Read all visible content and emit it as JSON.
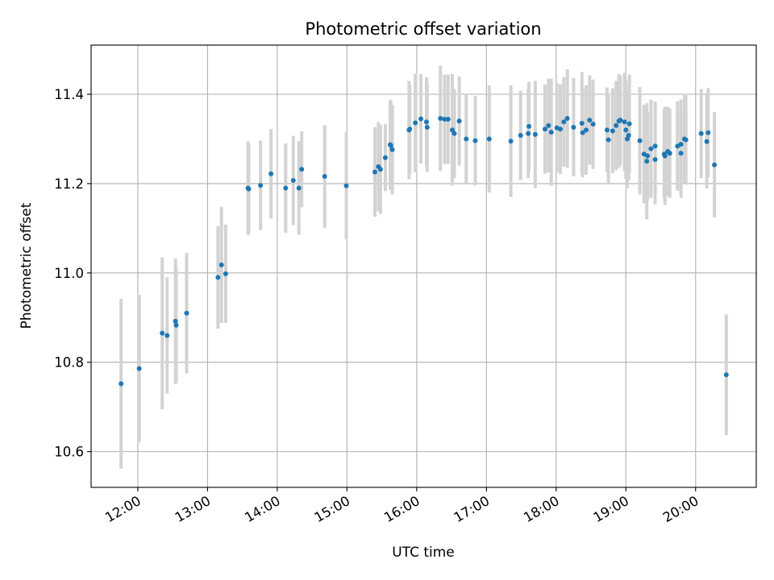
{
  "chart_data": {
    "type": "scatter",
    "title": "Photometric offset variation",
    "xlabel": "UTC time",
    "ylabel": "Photometric offset",
    "xlim_hours": [
      11.33,
      20.87
    ],
    "ylim": [
      10.52,
      11.51
    ],
    "grid": true,
    "x_ticks": [
      {
        "value": 12,
        "label": "12:00"
      },
      {
        "value": 13,
        "label": "13:00"
      },
      {
        "value": 14,
        "label": "14:00"
      },
      {
        "value": 15,
        "label": "15:00"
      },
      {
        "value": 16,
        "label": "16:00"
      },
      {
        "value": 17,
        "label": "17:00"
      },
      {
        "value": 18,
        "label": "18:00"
      },
      {
        "value": 19,
        "label": "19:00"
      },
      {
        "value": 20,
        "label": "20:00"
      }
    ],
    "y_ticks": [
      {
        "value": 10.6,
        "label": "10.6"
      },
      {
        "value": 10.8,
        "label": "10.8"
      },
      {
        "value": 11.0,
        "label": "11.0"
      },
      {
        "value": 11.2,
        "label": "11.2"
      },
      {
        "value": 11.4,
        "label": "11.4"
      }
    ],
    "colors": {
      "points": "#1f77b4",
      "errorbars": "#d3d3d3",
      "grid": "#b0b0b0"
    },
    "points": [
      [
        11.76,
        10.752,
        0.19
      ],
      [
        12.02,
        10.786,
        0.165
      ],
      [
        12.35,
        10.865,
        0.17
      ],
      [
        12.42,
        10.86,
        0.13
      ],
      [
        12.54,
        10.892,
        0.14
      ],
      [
        12.55,
        10.883,
        0.13
      ],
      [
        12.7,
        10.91,
        0.135
      ],
      [
        13.15,
        10.99,
        0.115
      ],
      [
        13.2,
        11.018,
        0.13
      ],
      [
        13.26,
        10.998,
        0.11
      ],
      [
        13.58,
        11.19,
        0.105
      ],
      [
        13.59,
        11.188,
        0.1
      ],
      [
        13.76,
        11.196,
        0.1
      ],
      [
        13.91,
        11.222,
        0.1
      ],
      [
        14.12,
        11.19,
        0.1
      ],
      [
        14.23,
        11.207,
        0.1
      ],
      [
        14.31,
        11.19,
        0.105
      ],
      [
        14.35,
        11.232,
        0.085
      ],
      [
        14.68,
        11.216,
        0.115
      ],
      [
        14.99,
        11.195,
        0.12
      ],
      [
        15.4,
        11.226,
        0.1
      ],
      [
        15.45,
        11.238,
        0.1
      ],
      [
        15.48,
        11.232,
        0.1
      ],
      [
        15.55,
        11.258,
        0.075
      ],
      [
        15.62,
        11.287,
        0.1
      ],
      [
        15.63,
        11.285,
        0.1
      ],
      [
        15.65,
        11.276,
        0.1
      ],
      [
        15.89,
        11.32,
        0.11
      ],
      [
        15.9,
        11.322,
        0.1
      ],
      [
        15.98,
        11.336,
        0.11
      ],
      [
        16.06,
        11.345,
        0.1
      ],
      [
        16.14,
        11.338,
        0.1
      ],
      [
        16.15,
        11.326,
        0.1
      ],
      [
        16.34,
        11.346,
        0.118
      ],
      [
        16.4,
        11.344,
        0.1
      ],
      [
        16.45,
        11.344,
        0.1
      ],
      [
        16.51,
        11.32,
        0.125
      ],
      [
        16.54,
        11.312,
        0.1
      ],
      [
        16.61,
        11.34,
        0.1
      ],
      [
        16.71,
        11.3,
        0.1
      ],
      [
        16.84,
        11.296,
        0.1
      ],
      [
        17.04,
        11.3,
        0.12
      ],
      [
        17.35,
        11.295,
        0.125
      ],
      [
        17.49,
        11.308,
        0.1
      ],
      [
        17.6,
        11.312,
        0.1
      ],
      [
        17.61,
        11.328,
        0.1
      ],
      [
        17.7,
        11.31,
        0.12
      ],
      [
        17.84,
        11.322,
        0.1
      ],
      [
        17.89,
        11.33,
        0.105
      ],
      [
        17.93,
        11.315,
        0.12
      ],
      [
        18.01,
        11.325,
        0.1
      ],
      [
        18.06,
        11.322,
        0.1
      ],
      [
        18.11,
        11.338,
        0.1
      ],
      [
        18.16,
        11.346,
        0.11
      ],
      [
        18.25,
        11.326,
        0.11
      ],
      [
        18.37,
        11.335,
        0.115
      ],
      [
        18.38,
        11.314,
        0.1
      ],
      [
        18.43,
        11.32,
        0.1
      ],
      [
        18.48,
        11.342,
        0.1
      ],
      [
        18.53,
        11.333,
        0.1
      ],
      [
        18.73,
        11.32,
        0.095
      ],
      [
        18.75,
        11.298,
        0.1
      ],
      [
        18.81,
        11.318,
        0.095
      ],
      [
        18.86,
        11.33,
        0.1
      ],
      [
        18.9,
        11.34,
        0.105
      ],
      [
        18.92,
        11.342,
        0.1
      ],
      [
        18.98,
        11.338,
        0.11
      ],
      [
        19.0,
        11.32,
        0.11
      ],
      [
        19.02,
        11.3,
        0.11
      ],
      [
        19.04,
        11.308,
        0.1
      ],
      [
        19.05,
        11.334,
        0.11
      ],
      [
        19.2,
        11.296,
        0.12
      ],
      [
        19.26,
        11.266,
        0.11
      ],
      [
        19.3,
        11.25,
        0.13
      ],
      [
        19.31,
        11.262,
        0.1
      ],
      [
        19.36,
        11.278,
        0.11
      ],
      [
        19.42,
        11.284,
        0.1
      ],
      [
        19.42,
        11.254,
        0.1
      ],
      [
        19.55,
        11.266,
        0.1
      ],
      [
        19.56,
        11.262,
        0.11
      ],
      [
        19.6,
        11.272,
        0.1
      ],
      [
        19.63,
        11.268,
        0.1
      ],
      [
        19.74,
        11.284,
        0.1
      ],
      [
        19.79,
        11.288,
        0.1
      ],
      [
        19.79,
        11.268,
        0.1
      ],
      [
        19.84,
        11.3,
        0.1
      ],
      [
        19.86,
        11.298,
        0.1
      ],
      [
        20.08,
        11.312,
        0.1
      ],
      [
        20.16,
        11.294,
        0.105
      ],
      [
        20.18,
        11.314,
        0.1
      ],
      [
        20.27,
        11.242,
        0.118
      ],
      [
        20.44,
        10.772,
        0.135
      ]
    ]
  }
}
